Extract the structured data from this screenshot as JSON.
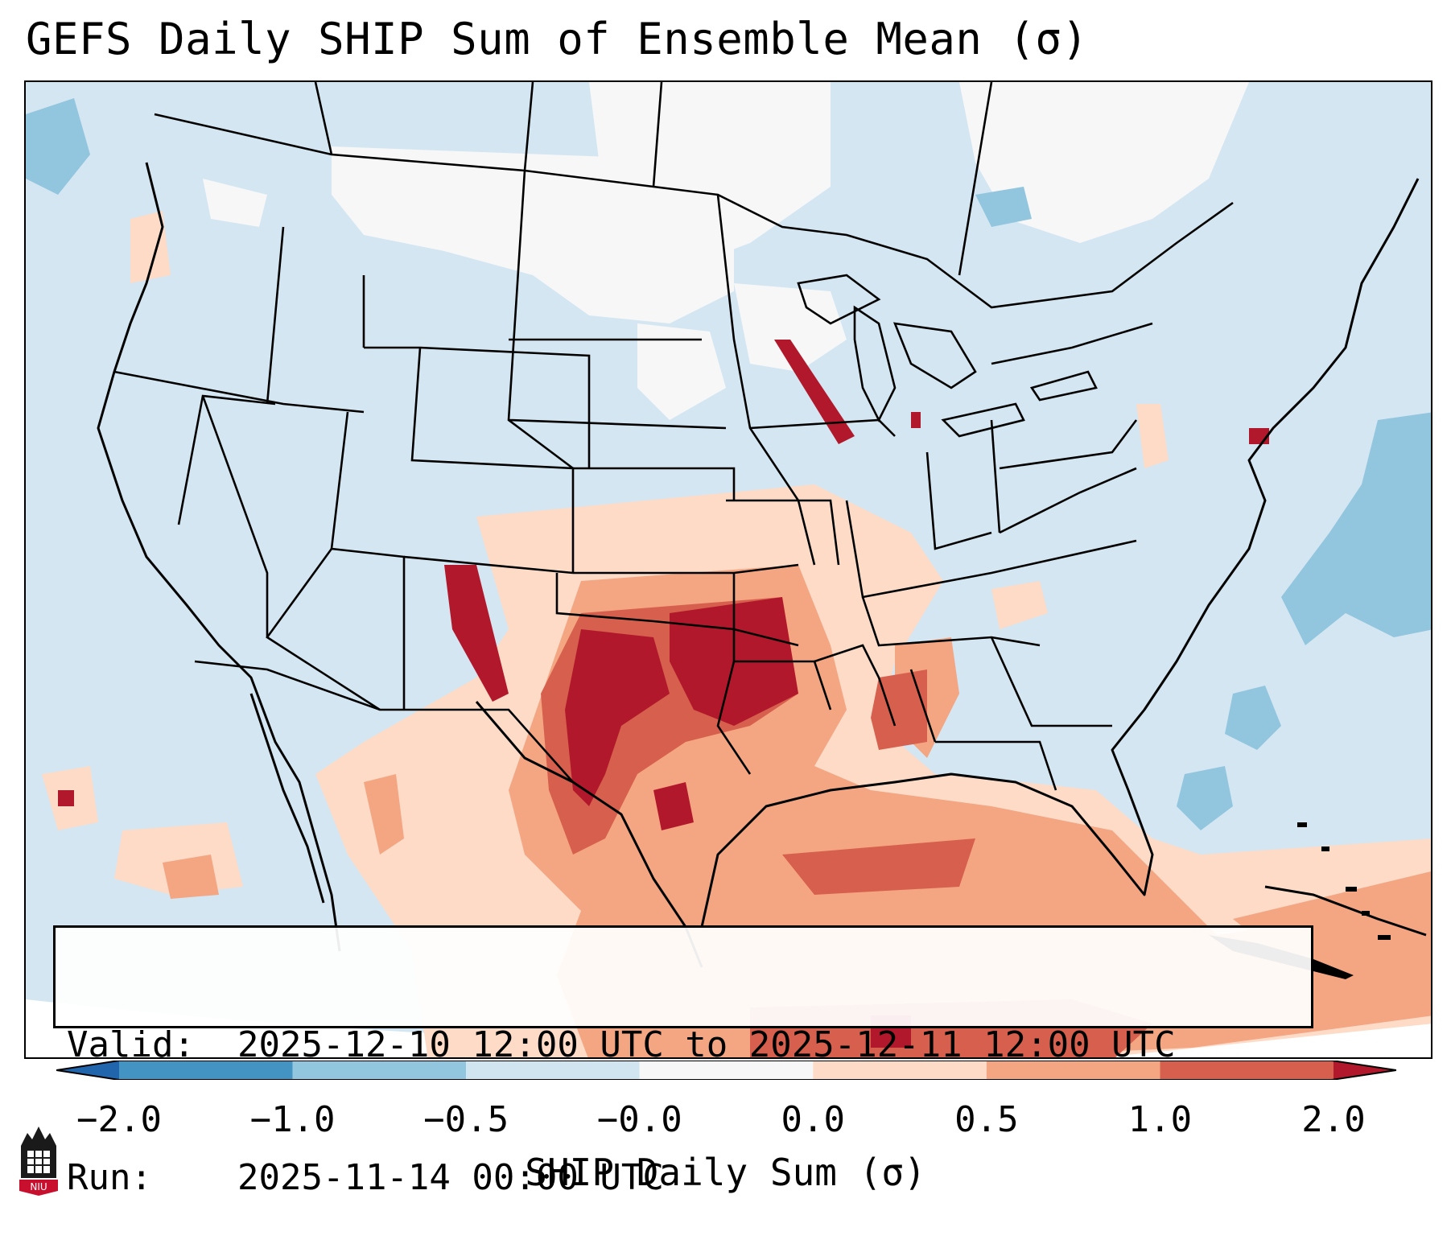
{
  "title": "GEFS Daily SHIP Sum of Ensemble Mean (σ)",
  "info_box": {
    "valid_label": "Valid:",
    "valid_value": "2025-12-10 12:00 UTC to 2025-12-11 12:00 UTC",
    "run_label": "Run:",
    "run_value": "2025-11-14 00:00 UTC"
  },
  "colorbar": {
    "label": "SHIP Daily Sum (σ)",
    "ticks": [
      "−2.0",
      "−1.0",
      "−0.5",
      "−0.0",
      "0.0",
      "0.5",
      "1.0",
      "2.0"
    ],
    "bins": [
      {
        "range": "< -2.0",
        "color": "#2166ac"
      },
      {
        "range": "-2.0 to -1.0",
        "color": "#4393c3"
      },
      {
        "range": "-1.0 to -0.5",
        "color": "#92c5de"
      },
      {
        "range": "-0.5 to -0.0",
        "color": "#d1e5f0"
      },
      {
        "range": "-0.0 to 0.0",
        "color": "#f7f7f7"
      },
      {
        "range": "0.0 to 0.5",
        "color": "#fddbc7"
      },
      {
        "range": "0.5 to 1.0",
        "color": "#f4a582"
      },
      {
        "range": "1.0 to 2.0",
        "color": "#d6604d"
      },
      {
        "range": "> 2.0",
        "color": "#b2182b"
      }
    ]
  },
  "map": {
    "region": "Contiguous United States, northern Mexico, Gulf of Mexico, Caribbean",
    "background_color": "#d1e5f0",
    "high_anomaly_areas": [
      "Oklahoma",
      "north-central Texas",
      "eastern New Mexico",
      "Gulf of Mexico",
      "Cuba / Caribbean"
    ],
    "low_anomaly_areas": [
      "western Atlantic off Carolinas",
      "northern Pacific off Washington"
    ]
  },
  "logo": {
    "text": "NIU",
    "color": "#c8102e"
  }
}
